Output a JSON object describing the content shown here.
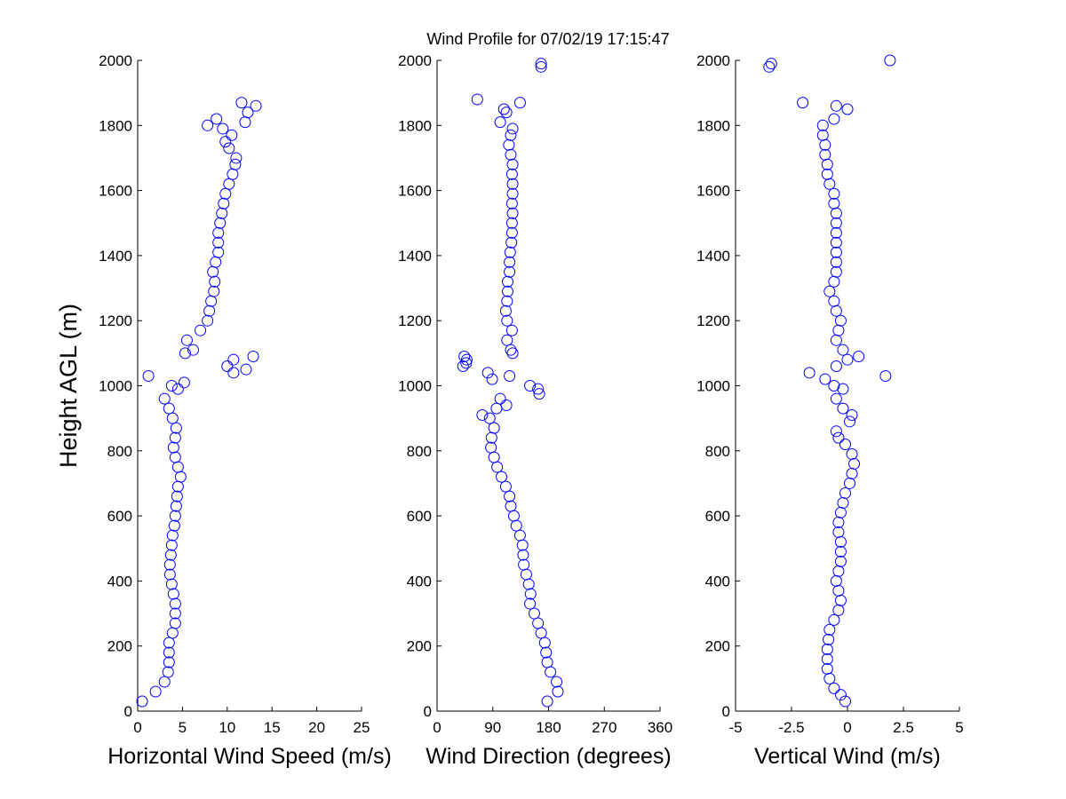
{
  "chart_data": [
    {
      "type": "scatter",
      "title": "Wind Profile for  07/02/19 17:15:47",
      "x_label": "Horizontal Wind Speed (m/s)",
      "y_label": "Height AGL (m)",
      "color": "#0000ff",
      "xlim": [
        0,
        25
      ],
      "xticks": [
        0,
        5,
        10,
        15,
        20,
        25
      ],
      "ylim": [
        0,
        2000
      ],
      "yticks": [
        0,
        200,
        400,
        600,
        800,
        1000,
        1200,
        1400,
        1600,
        1800,
        2000
      ],
      "x": [
        0.5,
        2,
        3,
        3.4,
        3.5,
        3.5,
        3.5,
        3.9,
        4.2,
        4.2,
        4.2,
        4.0,
        3.8,
        3.6,
        3.6,
        3.7,
        3.8,
        3.9,
        4.1,
        4.2,
        4.3,
        4.4,
        4.5,
        4.8,
        4.5,
        4.2,
        4.0,
        4.2,
        4.3,
        3.9,
        3.5,
        3.0,
        4.5,
        3.8,
        5.2,
        1.2,
        10.7,
        12.1,
        10.0,
        10.7,
        12.9,
        5.3,
        6.2,
        5.5,
        7.0,
        7.8,
        8.0,
        8.2,
        8.5,
        8.6,
        8.4,
        8.7,
        9.0,
        9.0,
        9.0,
        9.2,
        9.4,
        9.6,
        9.8,
        10.2,
        10.6,
        10.9,
        11.0,
        10.2,
        9.8,
        10.5,
        9.5,
        7.8,
        12.0,
        8.8,
        12.3,
        13.2,
        11.6
      ],
      "y": [
        30,
        60,
        90,
        120,
        150,
        180,
        210,
        240,
        270,
        300,
        330,
        360,
        390,
        420,
        450,
        480,
        510,
        540,
        570,
        600,
        630,
        660,
        690,
        720,
        750,
        780,
        810,
        840,
        870,
        900,
        930,
        960,
        990,
        1000,
        1010,
        1030,
        1040,
        1050,
        1060,
        1080,
        1090,
        1100,
        1110,
        1140,
        1170,
        1200,
        1230,
        1260,
        1290,
        1320,
        1350,
        1380,
        1410,
        1440,
        1470,
        1500,
        1530,
        1560,
        1590,
        1620,
        1650,
        1680,
        1700,
        1730,
        1750,
        1770,
        1790,
        1800,
        1810,
        1820,
        1840,
        1860,
        1870
      ]
    },
    {
      "type": "scatter",
      "x_label": "Wind Direction (degrees)",
      "color": "#0000ff",
      "xlim": [
        0,
        360
      ],
      "xticks": [
        0,
        90,
        180,
        270,
        360
      ],
      "ylim": [
        0,
        2000
      ],
      "yticks": [
        0,
        200,
        400,
        600,
        800,
        1000,
        1200,
        1400,
        1600,
        1800,
        2000
      ],
      "x": [
        178,
        195,
        193,
        183,
        178,
        176,
        174,
        168,
        163,
        157,
        150,
        151,
        148,
        144,
        140,
        139,
        138,
        134,
        128,
        124,
        119,
        117,
        111,
        104,
        97,
        92,
        87,
        88,
        92,
        85,
        73,
        96,
        112,
        102,
        165,
        163,
        150,
        89,
        117,
        82,
        42,
        47,
        48,
        44,
        122,
        119,
        113,
        121,
        113,
        111,
        113,
        114,
        114,
        117,
        117,
        118,
        120,
        121,
        121,
        122,
        121,
        122,
        122,
        121,
        122,
        119,
        116,
        119,
        122,
        102,
        112,
        108,
        134,
        65,
        168,
        168
      ],
      "y": [
        30,
        60,
        90,
        120,
        150,
        180,
        210,
        240,
        270,
        300,
        330,
        360,
        390,
        420,
        450,
        480,
        510,
        540,
        570,
        600,
        630,
        660,
        690,
        720,
        750,
        780,
        810,
        840,
        870,
        900,
        910,
        930,
        940,
        960,
        975,
        990,
        1000,
        1020,
        1030,
        1040,
        1060,
        1070,
        1080,
        1090,
        1100,
        1110,
        1140,
        1170,
        1200,
        1230,
        1260,
        1290,
        1320,
        1350,
        1380,
        1410,
        1440,
        1470,
        1500,
        1530,
        1560,
        1590,
        1620,
        1650,
        1680,
        1710,
        1740,
        1770,
        1790,
        1810,
        1840,
        1850,
        1870,
        1880,
        1980,
        1990
      ]
    },
    {
      "type": "scatter",
      "x_label": "Vertical Wind (m/s)",
      "color": "#0000ff",
      "xlim": [
        -5,
        5
      ],
      "xticks": [
        -5,
        -2.5,
        0,
        2.5,
        5
      ],
      "ylim": [
        0,
        2000
      ],
      "yticks": [
        0,
        200,
        400,
        600,
        800,
        1000,
        1200,
        1400,
        1600,
        1800,
        2000
      ],
      "x": [
        -0.1,
        -0.3,
        -0.6,
        -0.8,
        -0.9,
        -0.9,
        -0.9,
        -0.85,
        -0.8,
        -0.6,
        -0.4,
        -0.3,
        -0.4,
        -0.5,
        -0.4,
        -0.3,
        -0.3,
        -0.3,
        -0.4,
        -0.4,
        -0.3,
        -0.2,
        -0.1,
        0.1,
        0.2,
        0.3,
        0.2,
        -0.1,
        -0.4,
        -0.5,
        0.1,
        0.2,
        -0.2,
        -0.5,
        -0.2,
        -0.6,
        -1.0,
        1.7,
        -1.7,
        -0.5,
        0.0,
        0.5,
        -0.2,
        -0.5,
        -0.4,
        -0.3,
        -0.5,
        -0.6,
        -0.8,
        -0.6,
        -0.5,
        -0.5,
        -0.5,
        -0.5,
        -0.5,
        -0.5,
        -0.5,
        -0.6,
        -0.6,
        -0.8,
        -0.9,
        -0.9,
        -1.0,
        -1.0,
        -1.1,
        -1.1,
        -0.6,
        0.0,
        -0.5,
        -2.0,
        -3.5,
        -3.4,
        1.9
      ],
      "y": [
        30,
        50,
        70,
        100,
        130,
        160,
        190,
        220,
        250,
        280,
        310,
        340,
        370,
        400,
        430,
        460,
        490,
        520,
        550,
        580,
        610,
        640,
        670,
        700,
        730,
        760,
        790,
        820,
        840,
        860,
        890,
        910,
        930,
        960,
        990,
        1000,
        1020,
        1030,
        1040,
        1060,
        1080,
        1090,
        1110,
        1140,
        1170,
        1200,
        1230,
        1260,
        1290,
        1320,
        1350,
        1380,
        1410,
        1440,
        1470,
        1500,
        1530,
        1560,
        1590,
        1620,
        1650,
        1680,
        1710,
        1740,
        1770,
        1800,
        1820,
        1850,
        1860,
        1870,
        1980,
        1990,
        2000
      ]
    }
  ]
}
